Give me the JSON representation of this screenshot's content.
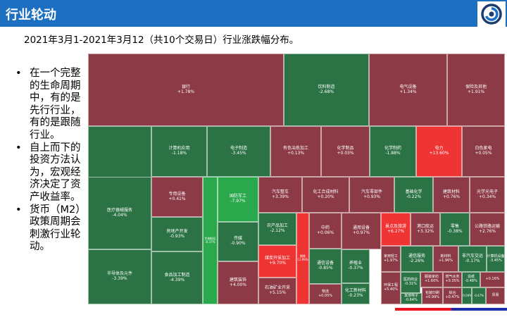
{
  "header": {
    "title": "行业轮动"
  },
  "subtitle": "2021年3月1-2021年3月12（共10个交易日）行业涨跌幅分布。",
  "bullets": [
    "在一个完整的生命周期中，有的是先行行业，有的是跟随行业。",
    "自上而下的投资方法认为，宏观经济决定了资产收益率。",
    "货币（M2）政策周期会刺激行业轮动。"
  ],
  "bullet_symbol": "•",
  "colors": {
    "header": "#1d6fc2",
    "up": "#8b3a46",
    "down": "#2b7345",
    "strong_up": "#ef3434",
    "strong_down": "#2aa84c",
    "footer_red": "#e8141f",
    "footer_blue": "#1b2fa8"
  },
  "treemap": {
    "cells": [
      {
        "name": "银行",
        "pct": "+1.78%",
        "v": 1.78
      },
      {
        "name": "饮料制造",
        "pct": "-2.68%",
        "v": -2.68
      },
      {
        "name": "电气设备",
        "pct": "+1.34%",
        "v": 1.34
      },
      {
        "name": "保险及其他",
        "pct": "+1.91%",
        "v": 1.91
      },
      {
        "name": "证券",
        "pct": "-1.94%",
        "v": -1.94
      },
      {
        "name": "计算机应用",
        "pct": "-1.18%",
        "v": -1.18
      },
      {
        "name": "电子制造",
        "pct": "-3.45%",
        "v": -3.45
      },
      {
        "name": "有色冶炼加工",
        "pct": "+0.13%",
        "v": 0.13
      },
      {
        "name": "化学制品",
        "pct": "+0.03%",
        "v": 0.03
      },
      {
        "name": "化学制药",
        "pct": "-1.88%",
        "v": -1.88
      },
      {
        "name": "电力",
        "pct": "+13.60%",
        "v": 13.6
      },
      {
        "name": "白色家电",
        "pct": "+0.05%",
        "v": 0.05
      },
      {
        "name": "医疗器械服务",
        "pct": "-4.04%",
        "v": -4.04
      },
      {
        "name": "专用设备",
        "pct": "+0.41%",
        "v": 0.41
      },
      {
        "name": "国防军工",
        "pct": "-7.97%",
        "v": -7.97
      },
      {
        "name": "汽车整车",
        "pct": "+3.39%",
        "v": 3.39
      },
      {
        "name": "化工合成材料",
        "pct": "+0.20%",
        "v": 0.2
      },
      {
        "name": "汽车零部件",
        "pct": "+0.93%",
        "v": 0.93
      },
      {
        "name": "基础化学",
        "pct": "-0.22%",
        "v": -0.22
      },
      {
        "name": "建筑材料",
        "pct": "+0.76%",
        "v": 0.76
      },
      {
        "name": "光学光电子",
        "pct": "+0.34%",
        "v": 0.34
      },
      {
        "name": "半导体及元件",
        "pct": "-3.39%",
        "v": -3.39
      },
      {
        "name": "房地产开发",
        "pct": "-0.93%",
        "v": -0.93
      },
      {
        "name": "生物制品",
        "pct": "-6.37%",
        "v": -6.37
      },
      {
        "name": "传媒",
        "pct": "-0.90%",
        "v": -0.9
      },
      {
        "name": "农产品加工",
        "pct": "-2.12%",
        "v": -2.12
      },
      {
        "name": "中药",
        "pct": "+0.06%",
        "v": 0.06
      },
      {
        "name": "通用设备",
        "pct": "+0.97%",
        "v": 0.97
      },
      {
        "name": "景点及旅游",
        "pct": "+6.27%",
        "v": 6.27
      },
      {
        "name": "港口航运",
        "pct": "+3.32%",
        "v": 3.32
      },
      {
        "name": "零售",
        "pct": "-0.38%",
        "v": -0.38
      },
      {
        "name": "公路铁路运输",
        "pct": "+2.76%",
        "v": 2.76
      },
      {
        "name": "煤炭开采加工",
        "pct": "+9.70%",
        "v": 9.7
      },
      {
        "name": "钢铁",
        "pct": "11.99%",
        "v": 11.99
      },
      {
        "name": "通信设备",
        "pct": "-0.85%",
        "v": -0.85
      },
      {
        "name": "养殖业",
        "pct": "-0.37%",
        "v": -0.37
      },
      {
        "name": "家用轻工",
        "pct": "+1.97%",
        "v": 1.97
      },
      {
        "name": "通信服务",
        "pct": "-2.26%",
        "v": -2.26
      },
      {
        "name": "新材料",
        "pct": "+1.96%",
        "v": 1.96
      },
      {
        "name": "非汽车交运",
        "pct": "-0.17%",
        "v": -0.17
      },
      {
        "name": "计算机设备",
        "pct": "-3.45%",
        "v": -3.45
      },
      {
        "name": "食品加工制造",
        "pct": "-4.39%",
        "v": -4.39
      },
      {
        "name": "建筑装饰",
        "pct": "+4.00%",
        "v": 4.0
      },
      {
        "name": "石油矿业开采",
        "pct": "+5.15%",
        "v": 5.15
      },
      {
        "name": "物流",
        "pct": "+0.05%",
        "v": 0.05
      },
      {
        "name": "化工新材料",
        "pct": "-0.23%",
        "v": -0.23
      },
      {
        "name": "环保工程",
        "pct": "+5.40%",
        "v": 5.4
      },
      {
        "name": "医药商业",
        "pct": "-0.31%",
        "v": -0.31
      },
      {
        "name": "服装家纺",
        "pct": "+1.60%",
        "v": 1.6
      },
      {
        "name": "燃气水务",
        "pct": "+0.35%",
        "v": 0.35
      },
      {
        "name": "造纸",
        "pct": "-0.48%",
        "v": -0.48
      },
      {
        "name": "其他电子",
        "pct": "-0.64%",
        "v": -0.64
      },
      {
        "name": "包装印刷",
        "pct": "+0.99%",
        "v": 0.99
      },
      {
        "name": "综合",
        "pct": "+0.47%",
        "v": 0.47
      },
      {
        "name": "",
        "pct": "-0.04%",
        "v": -0.04
      },
      {
        "name": "",
        "pct": "-0.47%",
        "v": -0.47
      },
      {
        "name": "",
        "pct": "+0.16%",
        "v": 0.16
      },
      {
        "name": "贸易",
        "pct": "",
        "v": 0.5
      },
      {
        "name": "家用电器",
        "pct": "+5.65%",
        "v": 5.65
      }
    ]
  }
}
